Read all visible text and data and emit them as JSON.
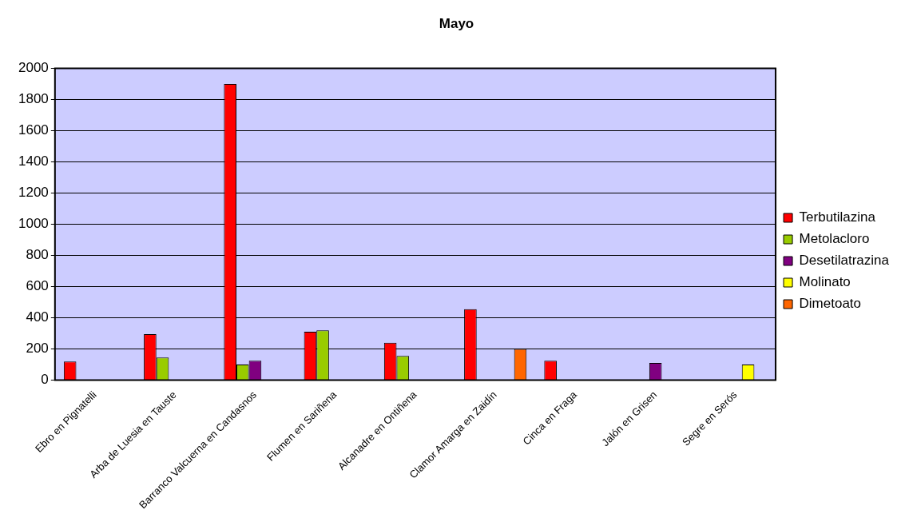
{
  "chart_data": {
    "type": "bar",
    "title": "Mayo",
    "categories": [
      "Ebro en Pignatelli",
      "Arba de Luesia en Tauste",
      "Barranco Valcuerna en Candasnos",
      "Flumen en Sariñena",
      "Alcanadre en Ontiñena",
      "Clamor Amarga en Zaidín",
      "Cinca en Fraga",
      "Jalón en Grisen",
      "Segre en Serós"
    ],
    "series": [
      {
        "name": "Terbutilazina",
        "color": "#ff0000",
        "values": [
          120,
          295,
          1900,
          310,
          240,
          455,
          125,
          null,
          null
        ]
      },
      {
        "name": "Metolacloro",
        "color": "#99cc00",
        "values": [
          null,
          145,
          100,
          320,
          155,
          null,
          null,
          null,
          null
        ]
      },
      {
        "name": "Desetilatrazina",
        "color": "#800080",
        "values": [
          null,
          null,
          125,
          null,
          null,
          null,
          null,
          110,
          null
        ]
      },
      {
        "name": "Molinato",
        "color": "#ffff00",
        "values": [
          null,
          null,
          null,
          null,
          null,
          null,
          null,
          null,
          100
        ]
      },
      {
        "name": "Dimetoato",
        "color": "#ff6600",
        "values": [
          null,
          null,
          null,
          null,
          null,
          200,
          null,
          null,
          null
        ]
      }
    ],
    "ylim": [
      0,
      2000
    ],
    "yticks": [
      0,
      200,
      400,
      600,
      800,
      1000,
      1200,
      1400,
      1600,
      1800,
      2000
    ],
    "grid": "y",
    "legend": "right"
  }
}
